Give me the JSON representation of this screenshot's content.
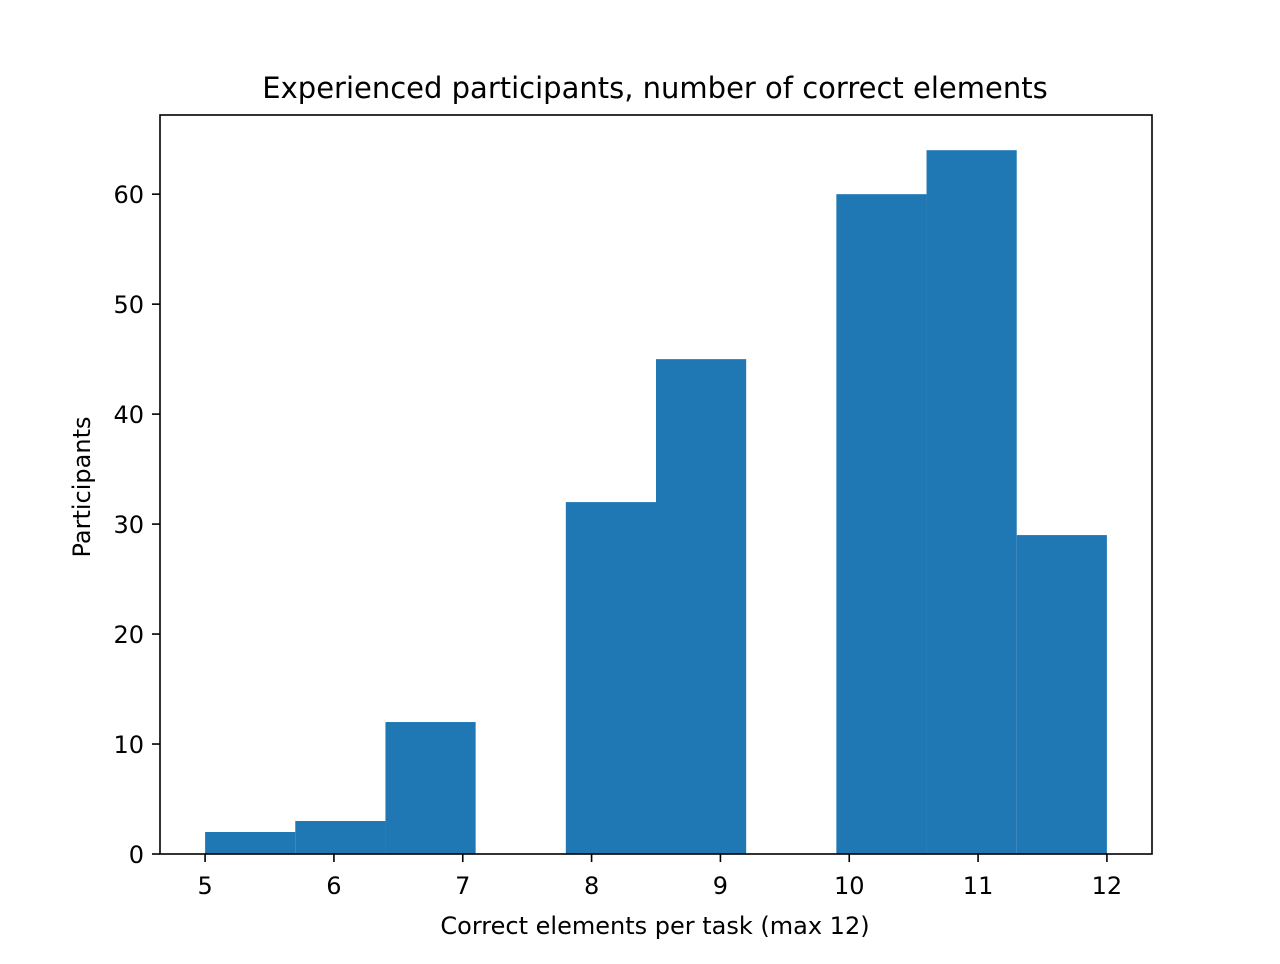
{
  "chart_data": {
    "type": "bar",
    "title": "Experienced participants, number of correct elements",
    "xlabel": "Correct elements per task (max 12)",
    "ylabel": "Participants",
    "xlim": [
      4.65,
      12.35
    ],
    "ylim": [
      0,
      67.2
    ],
    "xticks": [
      5,
      6,
      7,
      8,
      9,
      10,
      11,
      12
    ],
    "yticks": [
      0,
      10,
      20,
      30,
      40,
      50,
      60
    ],
    "grid": false,
    "bar_color": "#1f77b4",
    "bins": [
      {
        "start": 5.0,
        "end": 5.7,
        "value": 2
      },
      {
        "start": 5.7,
        "end": 6.4,
        "value": 3
      },
      {
        "start": 6.4,
        "end": 7.1,
        "value": 12
      },
      {
        "start": 7.1,
        "end": 7.8,
        "value": 0
      },
      {
        "start": 7.8,
        "end": 8.5,
        "value": 32
      },
      {
        "start": 8.5,
        "end": 9.2,
        "value": 45
      },
      {
        "start": 9.2,
        "end": 9.9,
        "value": 0
      },
      {
        "start": 9.9,
        "end": 10.6,
        "value": 60
      },
      {
        "start": 10.6,
        "end": 11.3,
        "value": 64
      },
      {
        "start": 11.3,
        "end": 12.0,
        "value": 29
      }
    ]
  }
}
